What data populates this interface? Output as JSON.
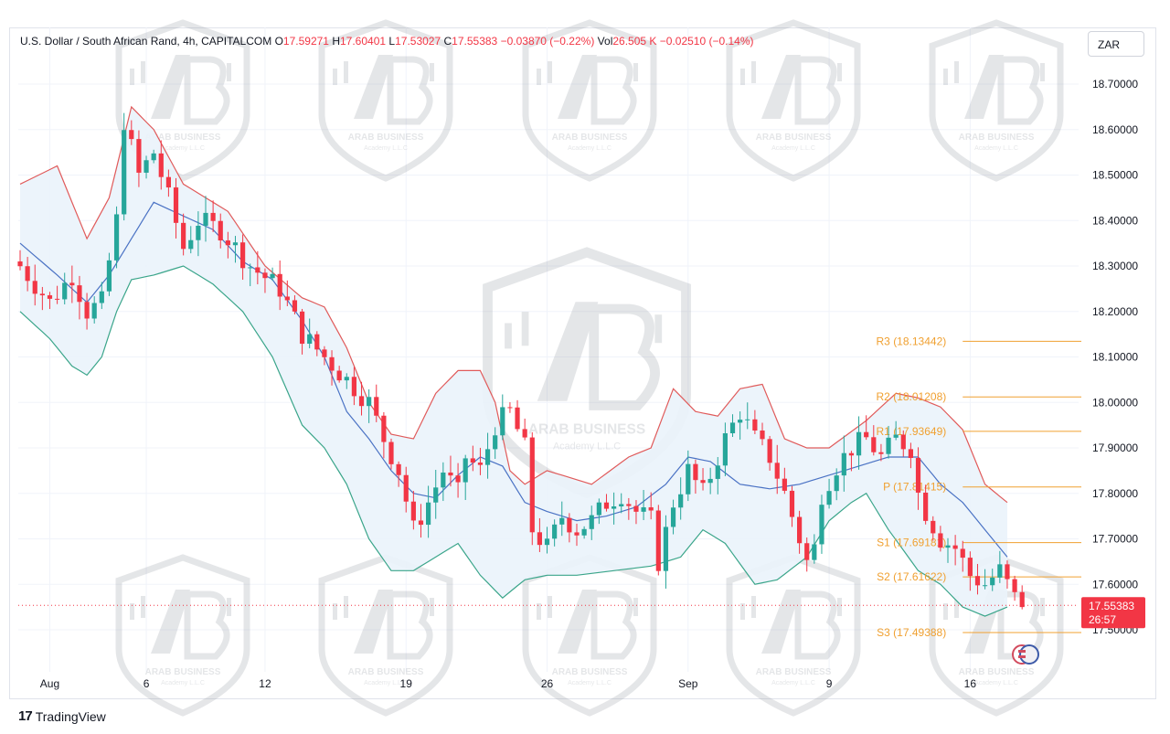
{
  "legend": {
    "symbol": "U.S. Dollar / South African Rand, 4h, CAPITALCOM",
    "o_label": "O",
    "o_value": "17.59271",
    "h_label": "H",
    "h_value": "17.60401",
    "l_label": "L",
    "l_value": "17.53027",
    "c_label": "C",
    "c_value": "17.55383",
    "change": "−0.03870 (−0.22%)",
    "vol_label": "Vol",
    "vol_value": "26.505 K",
    "vol_change": "−0.02510 (−0.14%)"
  },
  "currency": "ZAR",
  "footer": {
    "brand": "TradingView"
  },
  "watermark_text": {
    "main": "ARAB BUSINESS",
    "sub": "Academy L.L.C"
  },
  "colors": {
    "up": "#26a69a",
    "down": "#f23645",
    "upper_band": "#e05a5a",
    "middle_band": "#4a72c4",
    "lower_band": "#3aa58a",
    "band_fill": "#eaf3fb",
    "pivot": "#f0a030",
    "price_tag": "#f23645"
  },
  "price_tag": {
    "value": "17.55383",
    "timer": "26:57"
  },
  "chart_data": {
    "type": "candlestick",
    "symbol": "USDZAR",
    "timeframe": "4h",
    "y_range": [
      17.45,
      18.76
    ],
    "y_ticks": [
      "18.70000",
      "18.60000",
      "18.50000",
      "18.40000",
      "18.30000",
      "18.20000",
      "18.10000",
      "18.00000",
      "17.90000",
      "17.80000",
      "17.70000",
      "17.60000",
      "17.50000"
    ],
    "x_ticks": [
      {
        "label": "Aug",
        "i": 4
      },
      {
        "label": "6",
        "i": 17
      },
      {
        "label": "12",
        "i": 33
      },
      {
        "label": "19",
        "i": 52
      },
      {
        "label": "26",
        "i": 71
      },
      {
        "label": "Sep",
        "i": 90
      },
      {
        "label": "9",
        "i": 109
      },
      {
        "label": "16",
        "i": 128
      }
    ],
    "pivots": [
      {
        "label": "R3 (18.13442)",
        "value": 18.13442
      },
      {
        "label": "R2 (18.01208)",
        "value": 18.01208
      },
      {
        "label": "R1 (17.93649)",
        "value": 17.93649
      },
      {
        "label": "P (17.81415)",
        "value": 17.81415
      },
      {
        "label": "S1 (17.69181)",
        "value": 17.69181
      },
      {
        "label": "S2 (17.61622)",
        "value": 17.61622
      },
      {
        "label": "S3 (17.49388)",
        "value": 17.49388
      }
    ],
    "pivot_start_index": 127,
    "close_anchors": [
      [
        0,
        18.3
      ],
      [
        4,
        18.22
      ],
      [
        7,
        18.28
      ],
      [
        9,
        18.2
      ],
      [
        11,
        18.22
      ],
      [
        13,
        18.4
      ],
      [
        14,
        18.62
      ],
      [
        16,
        18.5
      ],
      [
        18,
        18.55
      ],
      [
        20,
        18.45
      ],
      [
        22,
        18.34
      ],
      [
        24,
        18.4
      ],
      [
        27,
        18.38
      ],
      [
        31,
        18.3
      ],
      [
        35,
        18.25
      ],
      [
        38,
        18.15
      ],
      [
        41,
        18.1
      ],
      [
        44,
        18.05
      ],
      [
        47,
        18.0
      ],
      [
        49,
        17.92
      ],
      [
        51,
        17.85
      ],
      [
        53,
        17.72
      ],
      [
        55,
        17.78
      ],
      [
        57,
        17.85
      ],
      [
        59,
        17.8
      ],
      [
        60,
        17.88
      ],
      [
        62,
        17.85
      ],
      [
        64,
        17.95
      ],
      [
        66,
        17.98
      ],
      [
        68,
        17.9
      ],
      [
        69,
        17.72
      ],
      [
        71,
        17.68
      ],
      [
        73,
        17.75
      ],
      [
        75,
        17.72
      ],
      [
        77,
        17.74
      ],
      [
        79,
        17.78
      ],
      [
        81,
        17.8
      ],
      [
        83,
        17.76
      ],
      [
        85,
        17.74
      ],
      [
        86,
        17.65
      ],
      [
        88,
        17.78
      ],
      [
        90,
        17.85
      ],
      [
        92,
        17.8
      ],
      [
        95,
        17.92
      ],
      [
        97,
        17.98
      ],
      [
        99,
        17.92
      ],
      [
        101,
        17.88
      ],
      [
        103,
        17.8
      ],
      [
        105,
        17.7
      ],
      [
        106,
        17.65
      ],
      [
        107,
        17.68
      ],
      [
        108,
        17.8
      ],
      [
        110,
        17.86
      ],
      [
        112,
        17.9
      ],
      [
        114,
        17.92
      ],
      [
        116,
        17.88
      ],
      [
        118,
        17.92
      ],
      [
        120,
        17.9
      ],
      [
        121,
        17.8
      ],
      [
        122,
        17.76
      ],
      [
        124,
        17.7
      ],
      [
        126,
        17.68
      ],
      [
        128,
        17.62
      ],
      [
        130,
        17.6
      ],
      [
        132,
        17.63
      ],
      [
        134,
        17.57
      ],
      [
        135,
        17.55
      ]
    ],
    "first_open": 18.31,
    "bands": {
      "upper": [
        [
          0,
          18.48
        ],
        [
          5,
          18.52
        ],
        [
          9,
          18.36
        ],
        [
          12,
          18.45
        ],
        [
          15,
          18.65
        ],
        [
          18,
          18.6
        ],
        [
          22,
          18.48
        ],
        [
          28,
          18.42
        ],
        [
          33,
          18.3
        ],
        [
          38,
          18.23
        ],
        [
          41,
          18.21
        ],
        [
          44,
          18.12
        ],
        [
          47,
          18.0
        ],
        [
          50,
          17.93
        ],
        [
          53,
          17.92
        ],
        [
          56,
          18.02
        ],
        [
          59,
          18.07
        ],
        [
          62,
          18.07
        ],
        [
          64,
          18.0
        ],
        [
          66,
          17.85
        ],
        [
          68,
          17.82
        ],
        [
          71,
          17.85
        ],
        [
          77,
          17.82
        ],
        [
          82,
          17.88
        ],
        [
          85,
          17.9
        ],
        [
          88,
          18.03
        ],
        [
          91,
          17.98
        ],
        [
          94,
          17.97
        ],
        [
          97,
          18.03
        ],
        [
          100,
          18.04
        ],
        [
          103,
          17.92
        ],
        [
          106,
          17.9
        ],
        [
          109,
          17.9
        ],
        [
          114,
          17.96
        ],
        [
          118,
          18.02
        ],
        [
          121,
          18.01
        ],
        [
          124,
          17.99
        ],
        [
          127,
          17.94
        ],
        [
          130,
          17.82
        ],
        [
          133,
          17.78
        ]
      ],
      "middle": [
        [
          0,
          18.35
        ],
        [
          5,
          18.28
        ],
        [
          9,
          18.22
        ],
        [
          12,
          18.28
        ],
        [
          15,
          18.36
        ],
        [
          18,
          18.44
        ],
        [
          22,
          18.41
        ],
        [
          26,
          18.38
        ],
        [
          30,
          18.31
        ],
        [
          34,
          18.27
        ],
        [
          38,
          18.18
        ],
        [
          41,
          18.1
        ],
        [
          44,
          17.98
        ],
        [
          47,
          17.92
        ],
        [
          50,
          17.85
        ],
        [
          53,
          17.8
        ],
        [
          56,
          17.79
        ],
        [
          59,
          17.84
        ],
        [
          62,
          17.88
        ],
        [
          65,
          17.86
        ],
        [
          68,
          17.78
        ],
        [
          71,
          17.76
        ],
        [
          75,
          17.74
        ],
        [
          79,
          17.75
        ],
        [
          83,
          17.77
        ],
        [
          87,
          17.82
        ],
        [
          90,
          17.88
        ],
        [
          93,
          17.87
        ],
        [
          97,
          17.82
        ],
        [
          101,
          17.81
        ],
        [
          105,
          17.82
        ],
        [
          109,
          17.84
        ],
        [
          113,
          17.86
        ],
        [
          117,
          17.88
        ],
        [
          121,
          17.88
        ],
        [
          124,
          17.82
        ],
        [
          127,
          17.78
        ],
        [
          130,
          17.72
        ],
        [
          133,
          17.66
        ]
      ],
      "lower": [
        [
          0,
          18.2
        ],
        [
          4,
          18.14
        ],
        [
          7,
          18.08
        ],
        [
          9,
          18.06
        ],
        [
          11,
          18.1
        ],
        [
          13,
          18.2
        ],
        [
          15,
          18.27
        ],
        [
          18,
          18.28
        ],
        [
          22,
          18.3
        ],
        [
          26,
          18.26
        ],
        [
          30,
          18.2
        ],
        [
          34,
          18.1
        ],
        [
          38,
          17.95
        ],
        [
          41,
          17.9
        ],
        [
          44,
          17.82
        ],
        [
          47,
          17.7
        ],
        [
          50,
          17.63
        ],
        [
          53,
          17.63
        ],
        [
          56,
          17.66
        ],
        [
          59,
          17.69
        ],
        [
          62,
          17.62
        ],
        [
          65,
          17.57
        ],
        [
          68,
          17.61
        ],
        [
          71,
          17.62
        ],
        [
          75,
          17.62
        ],
        [
          80,
          17.63
        ],
        [
          85,
          17.64
        ],
        [
          89,
          17.66
        ],
        [
          92,
          17.72
        ],
        [
          95,
          17.69
        ],
        [
          99,
          17.6
        ],
        [
          102,
          17.61
        ],
        [
          106,
          17.66
        ],
        [
          109,
          17.74
        ],
        [
          112,
          17.78
        ],
        [
          114,
          17.8
        ],
        [
          117,
          17.72
        ],
        [
          121,
          17.63
        ],
        [
          124,
          17.6
        ],
        [
          127,
          17.55
        ],
        [
          130,
          17.53
        ],
        [
          133,
          17.55
        ]
      ]
    }
  }
}
